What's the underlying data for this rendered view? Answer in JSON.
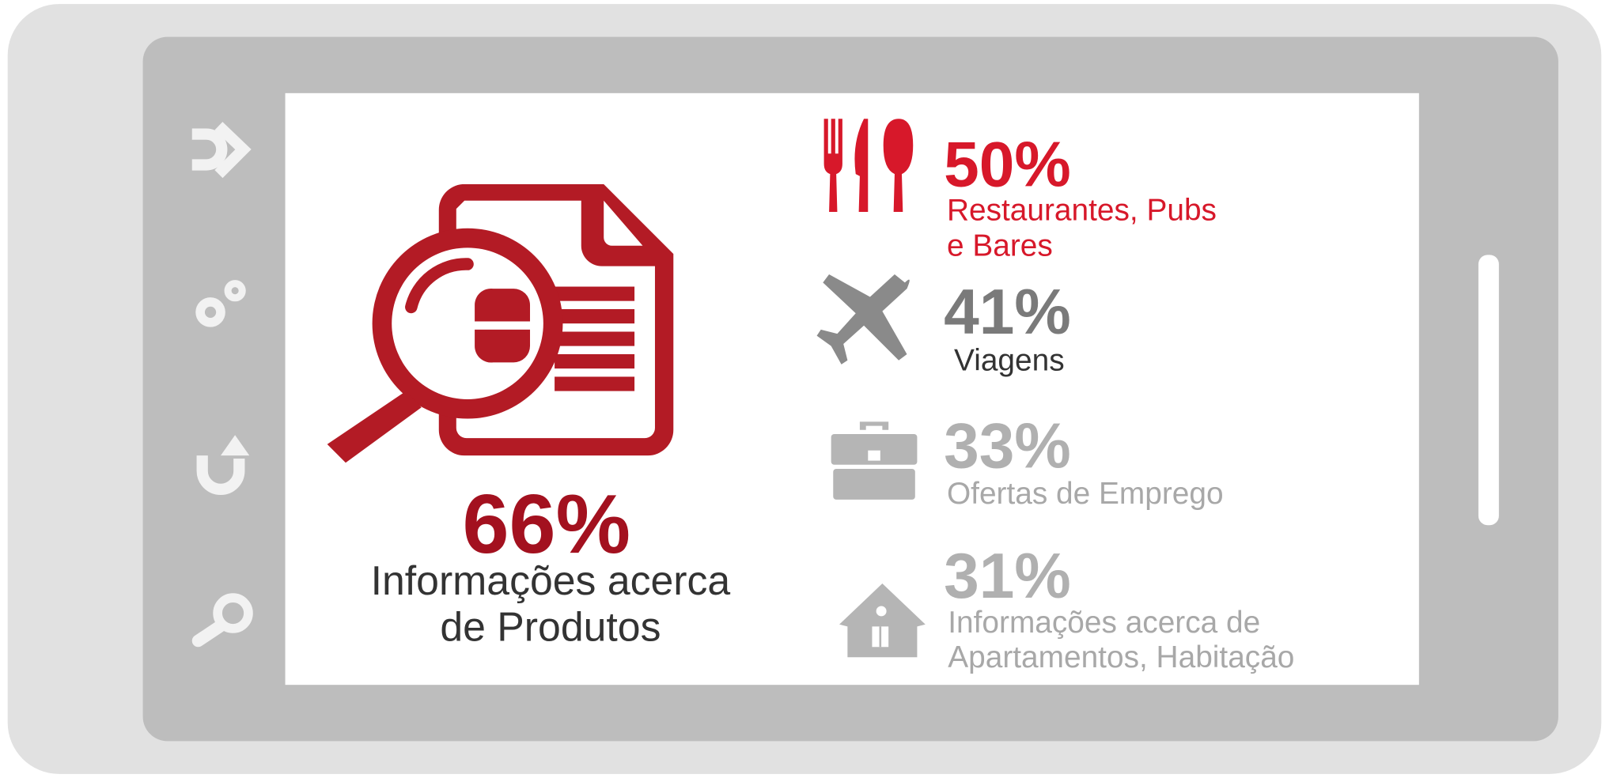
{
  "main": {
    "value": "66%",
    "label_lines": [
      "Informações acerca",
      "de Produtos"
    ]
  },
  "items": [
    {
      "value": "50%",
      "label_lines": [
        "Restaurantes, Pubs",
        "e Bares"
      ]
    },
    {
      "value": "41%",
      "label_lines": [
        "Viagens"
      ]
    },
    {
      "value": "33%",
      "label_lines": [
        "Ofertas de Emprego"
      ]
    },
    {
      "value": "31%",
      "label_lines": [
        "Informações acerca de",
        "Apartamentos, Habitação"
      ]
    }
  ]
}
